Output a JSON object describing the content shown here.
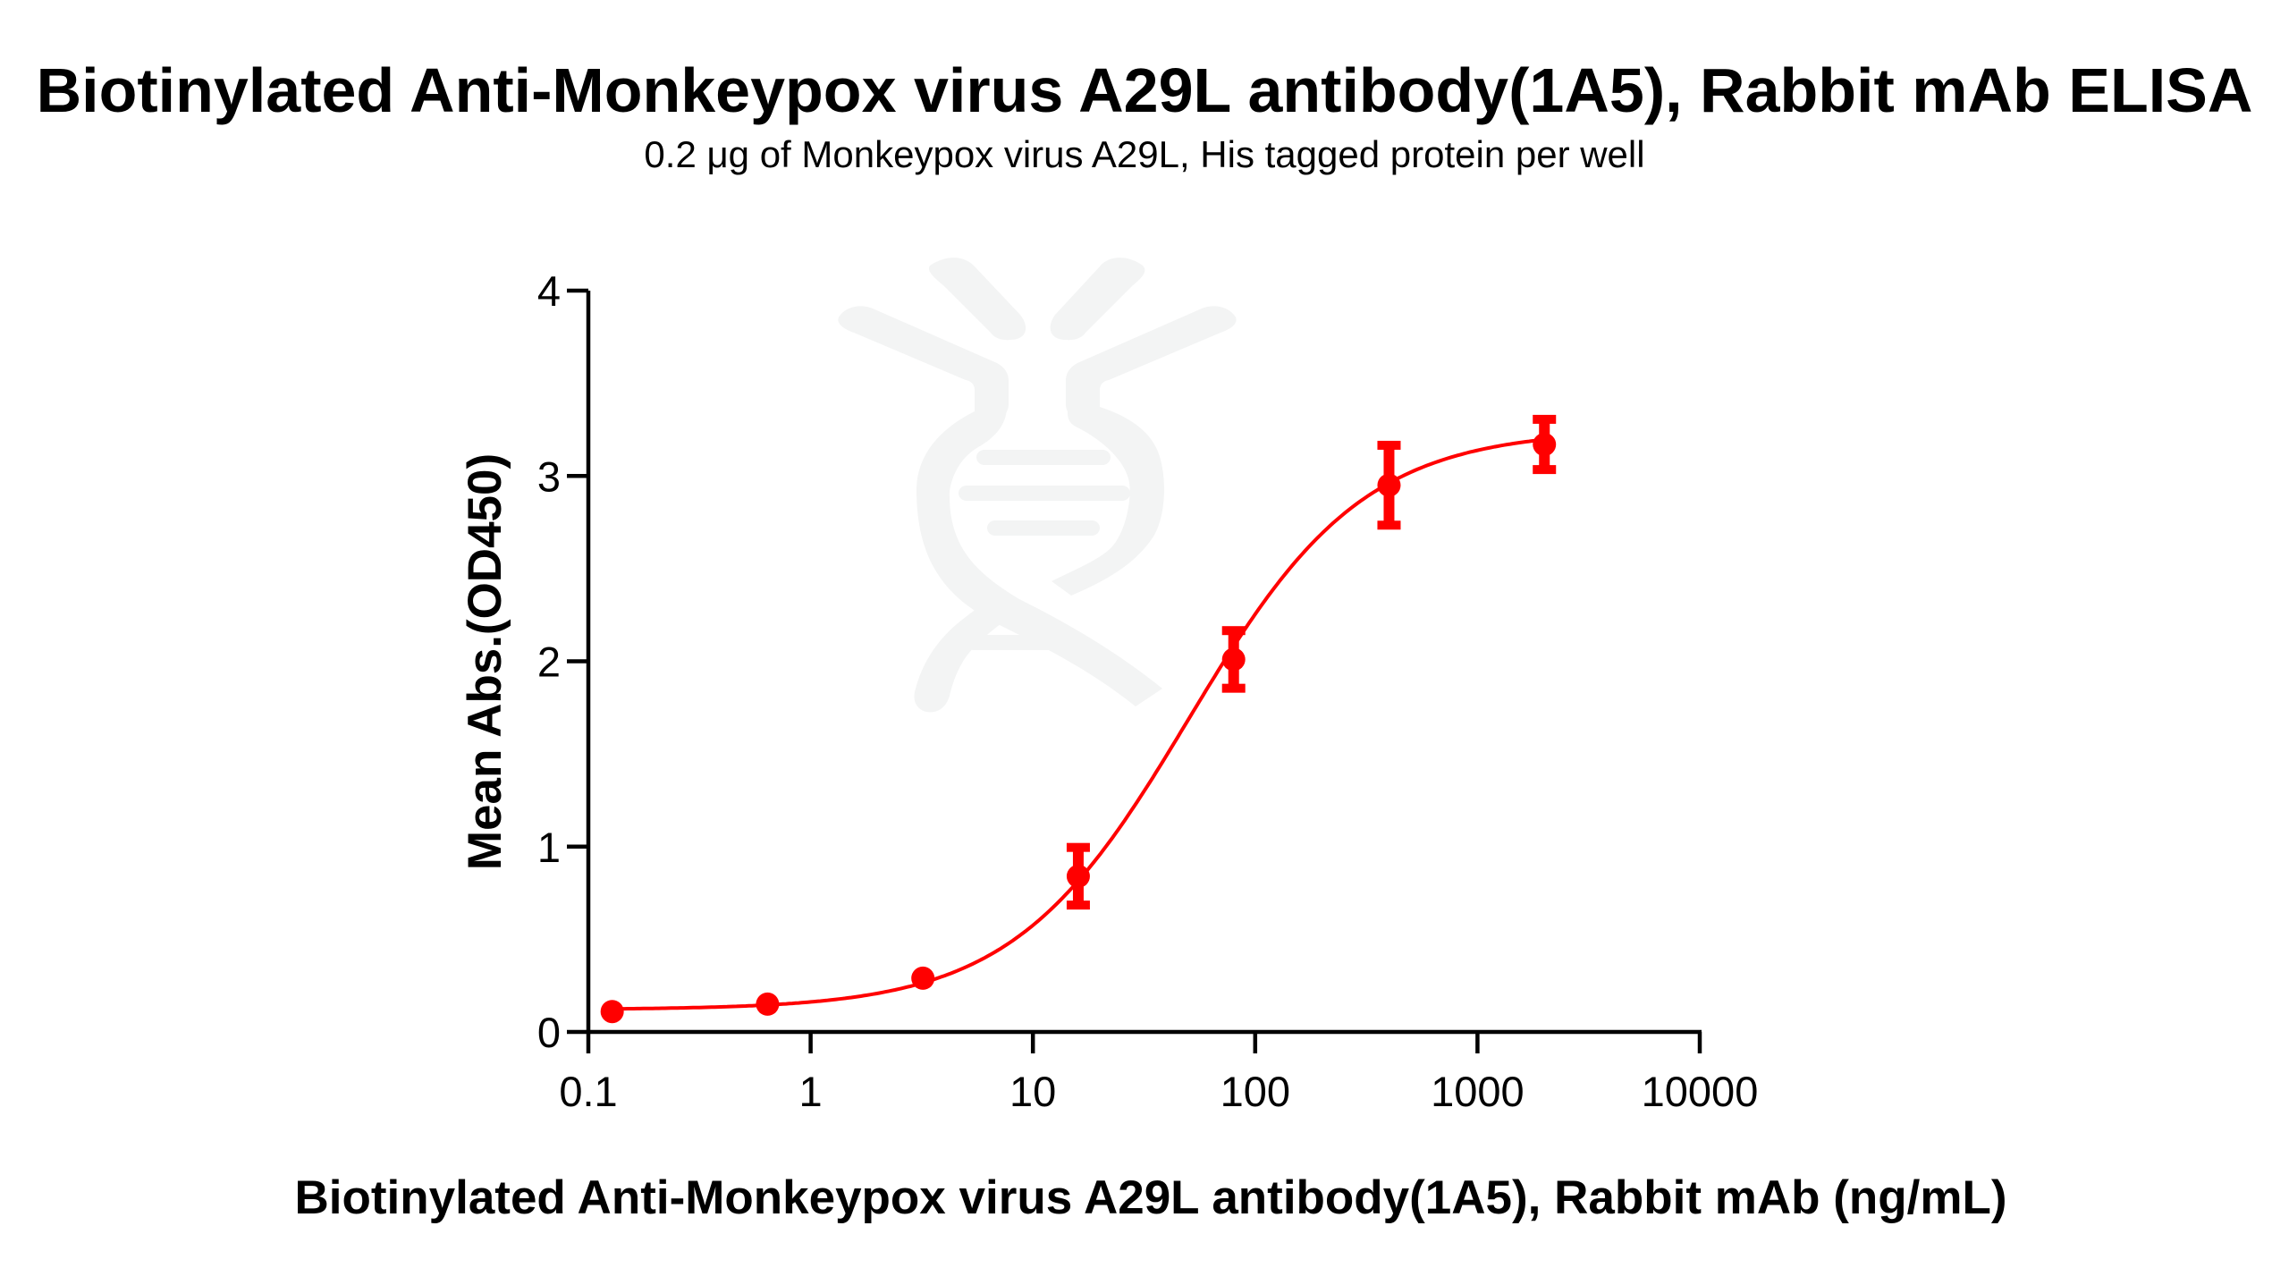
{
  "chart_data": {
    "type": "scatter",
    "title": "Biotinylated Anti-Monkeypox virus A29L antibody(1A5), Rabbit mAb ELISA",
    "subtitle": "0.2 μg of Monkeypox virus A29L, His tagged protein per well",
    "xlabel": "Biotinylated Anti-Monkeypox virus A29L antibody(1A5), Rabbit mAb (ng/mL)",
    "ylabel": "Mean Abs.(OD450)",
    "xscale": "log",
    "xlim": [
      0.1,
      10000
    ],
    "ylim": [
      0,
      4
    ],
    "xticks": [
      0.1,
      1,
      10,
      100,
      1000,
      10000
    ],
    "xtick_labels": [
      "0.1",
      "1",
      "10",
      "100",
      "1000",
      "10000"
    ],
    "yticks": [
      0,
      1,
      2,
      3,
      4
    ],
    "ytick_labels": [
      "0",
      "1",
      "2",
      "3",
      "4"
    ],
    "grid": false,
    "legend": null,
    "series": [
      {
        "name": "Mean Abs.(OD450)",
        "color": "#FF0000",
        "x": [
          0.128,
          0.64,
          3.2,
          16,
          80,
          400,
          2000
        ],
        "y": [
          0.11,
          0.15,
          0.29,
          0.84,
          2.01,
          2.95,
          3.17
        ],
        "error": [
          0.0,
          0.0,
          0.0,
          0.17,
          0.17,
          0.23,
          0.15
        ]
      }
    ],
    "fit": {
      "type": "4PL",
      "bottom": 0.12,
      "top": 3.25,
      "ec50": 50,
      "hill": 1.1,
      "color": "#FF0000"
    },
    "watermark": "dna-antibody-logo"
  }
}
